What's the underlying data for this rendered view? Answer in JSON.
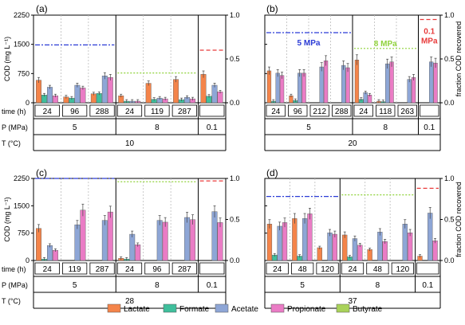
{
  "legend": [
    {
      "name": "Lactate",
      "color": "#f4844a"
    },
    {
      "name": "Formate",
      "color": "#3fbf9c"
    },
    {
      "name": "Acetate",
      "color": "#8ea6d6"
    },
    {
      "name": "Propionate",
      "color": "#ea7cc5"
    },
    {
      "name": "Butyrate",
      "color": "#a9d25a"
    }
  ],
  "row_labels": {
    "time": "time (h)",
    "pressure": "P (MPa)",
    "temperature": "T (°C)"
  },
  "y_left_label": "COD (mg L⁻¹)",
  "y_right_label": "fraction COD recovered",
  "ref_colors": {
    "5": "#2b3bd6",
    "8": "#8fd23a",
    "0.1": "#e83a3a"
  },
  "chart_data": [
    {
      "panel": "(a)",
      "temperature": "10",
      "type": "bar",
      "ylim_left": [
        0,
        2250
      ],
      "yticks_left": [
        "0",
        "750",
        "1500",
        "2250"
      ],
      "ylim_right": [
        0,
        1.0
      ],
      "yticks_right": [
        "0.0",
        "0.5",
        "1.0"
      ],
      "annotations": [],
      "pressure_groups": [
        {
          "pressure": "5",
          "fraction_recovered": 0.66,
          "samples": [
            {
              "time": "24",
              "values": [
                580,
                200,
                400,
                180,
                0
              ]
            },
            {
              "time": "96",
              "values": [
                150,
                120,
                450,
                380,
                0
              ]
            },
            {
              "time": "288",
              "values": [
                230,
                240,
                690,
                650,
                0
              ]
            }
          ]
        },
        {
          "pressure": "8",
          "fraction_recovered": 0.34,
          "samples": [
            {
              "time": "24",
              "values": [
                180,
                40,
                40,
                40,
                0
              ]
            },
            {
              "time": "119",
              "values": [
                500,
                90,
                120,
                100,
                0
              ]
            },
            {
              "time": "287",
              "values": [
                600,
                80,
                140,
                100,
                0
              ]
            }
          ]
        },
        {
          "pressure": "0.1",
          "fraction_recovered": 0.6,
          "samples": [
            {
              "time": "",
              "values": [
                730,
                170,
                450,
                280,
                0
              ]
            }
          ]
        }
      ]
    },
    {
      "panel": "(b)",
      "temperature": "20",
      "type": "bar",
      "ylim_left": [
        0,
        2250
      ],
      "yticks_left": [],
      "ylim_right": [
        0,
        1.0
      ],
      "yticks_right": [
        "0.0",
        "0.5",
        "1.0"
      ],
      "annotations": [
        {
          "text": "5 MPa",
          "group": 0
        },
        {
          "text": "8 MPa",
          "group": 1
        },
        {
          "text": "0.1 MPa",
          "group": 2
        }
      ],
      "pressure_groups": [
        {
          "pressure": "5",
          "fraction_recovered": 0.8,
          "samples": [
            {
              "time": "24",
              "values": [
                820,
                40,
                760,
                700,
                0
              ]
            },
            {
              "time": "96",
              "values": [
                180,
                60,
                760,
                760,
                0
              ]
            },
            {
              "time": "212",
              "values": [
                0,
                0,
                920,
                1080,
                0
              ]
            },
            {
              "time": "288",
              "values": [
                0,
                0,
                960,
                900,
                0
              ]
            }
          ]
        },
        {
          "pressure": "8",
          "fraction_recovered": 0.62,
          "samples": [
            {
              "time": "24",
              "values": [
                1100,
                90,
                260,
                200,
                0
              ]
            },
            {
              "time": "118",
              "values": [
                40,
                30,
                1000,
                1050,
                0
              ]
            },
            {
              "time": "263",
              "values": [
                0,
                0,
                600,
                650,
                0
              ]
            }
          ]
        },
        {
          "pressure": "0.1",
          "fraction_recovered": 0.95,
          "samples": [
            {
              "time": "",
              "values": [
                0,
                0,
                1050,
                1020,
                0
              ]
            }
          ]
        }
      ]
    },
    {
      "panel": "(c)",
      "temperature": "28",
      "type": "bar",
      "ylim_left": [
        0,
        2250
      ],
      "yticks_left": [
        "0",
        "750",
        "1500",
        "2250"
      ],
      "ylim_right": [
        0,
        1.0
      ],
      "yticks_right": [
        "0.0",
        "0.5",
        "1.0"
      ],
      "annotations": [],
      "pressure_groups": [
        {
          "pressure": "5",
          "fraction_recovered": 1.0,
          "samples": [
            {
              "time": "24",
              "values": [
                880,
                40,
                410,
                280,
                0
              ]
            },
            {
              "time": "119",
              "values": [
                0,
                0,
                980,
                1380,
                0
              ]
            },
            {
              "time": "287",
              "values": [
                0,
                0,
                1100,
                1330,
                0
              ]
            }
          ]
        },
        {
          "pressure": "8",
          "fraction_recovered": 0.96,
          "samples": [
            {
              "time": "24",
              "values": [
                60,
                40,
                720,
                430,
                0
              ]
            },
            {
              "time": "96",
              "values": [
                0,
                0,
                1100,
                1050,
                0
              ]
            },
            {
              "time": "287",
              "values": [
                0,
                0,
                1180,
                1120,
                0
              ]
            }
          ]
        },
        {
          "pressure": "0.1",
          "fraction_recovered": 0.97,
          "samples": [
            {
              "time": "",
              "values": [
                0,
                0,
                1340,
                1040,
                0
              ]
            }
          ]
        }
      ]
    },
    {
      "panel": "(d)",
      "temperature": "37",
      "type": "bar",
      "ylim_left": [
        0,
        2250
      ],
      "yticks_left": [],
      "ylim_right": [
        0,
        1.0
      ],
      "yticks_right": [
        "0.0",
        "0.5",
        "1.0"
      ],
      "annotations": [],
      "pressure_groups": [
        {
          "pressure": "5",
          "fraction_recovered": 0.78,
          "samples": [
            {
              "time": "24",
              "values": [
                1000,
                150,
                940,
                1040,
                0
              ]
            },
            {
              "time": "48",
              "values": [
                1150,
                120,
                1150,
                1280,
                0
              ]
            },
            {
              "time": "120",
              "values": [
                350,
                0,
                760,
                720,
                0
              ]
            }
          ]
        },
        {
          "pressure": "8",
          "fraction_recovered": 0.8,
          "samples": [
            {
              "time": "24",
              "values": [
                700,
                100,
                600,
                420,
                0
              ]
            },
            {
              "time": "48",
              "values": [
                300,
                0,
                780,
                520,
                0
              ]
            },
            {
              "time": "120",
              "values": [
                0,
                0,
                1000,
                760,
                0
              ]
            }
          ]
        },
        {
          "pressure": "0.1",
          "fraction_recovered": 0.88,
          "samples": [
            {
              "time": "",
              "values": [
                120,
                0,
                1300,
                540,
                0
              ]
            }
          ]
        }
      ]
    }
  ]
}
